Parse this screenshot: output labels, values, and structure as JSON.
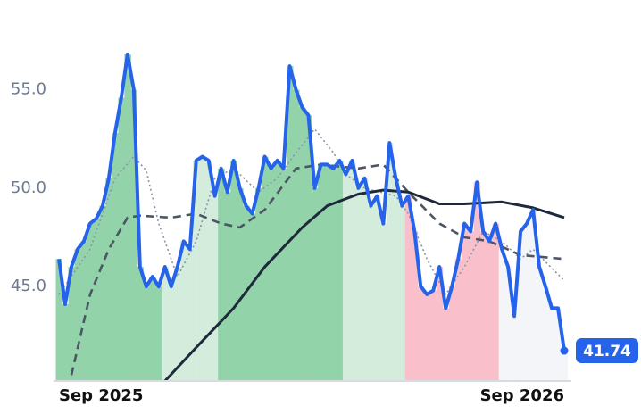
{
  "chart_data": {
    "type": "line",
    "categories": [
      "Sep 2025",
      null,
      null,
      null,
      null,
      null,
      null,
      null,
      null,
      null,
      null,
      null,
      null,
      null,
      null,
      null,
      null,
      null,
      null,
      null,
      null,
      null,
      null,
      null,
      null,
      null,
      null,
      null,
      null,
      null,
      null,
      null,
      null,
      null,
      null,
      null,
      null,
      null,
      null,
      null,
      null,
      null,
      null,
      null,
      null,
      null,
      null,
      null,
      null,
      null,
      null,
      null,
      null,
      null,
      null,
      null,
      null,
      null,
      null,
      null,
      null,
      null,
      null,
      null,
      null,
      null,
      null,
      null,
      null,
      null,
      null,
      null,
      null,
      null,
      null,
      null,
      null,
      null,
      null,
      null,
      null,
      "Sep 2026"
    ],
    "series": [
      {
        "color": "#2563eb",
        "values": [
          46.4,
          44.1,
          46,
          46.9,
          47.3,
          48.2,
          48.45,
          49.1,
          50.5,
          52.8,
          54.6,
          56.8,
          55,
          46,
          45,
          45.5,
          45,
          46,
          45,
          46,
          47.3,
          46.9,
          51.4,
          51.6,
          51.4,
          49.6,
          51,
          49.8,
          51.4,
          50,
          49.1,
          48.7,
          50,
          51.6,
          51,
          51.4,
          51,
          56.2,
          55,
          54.1,
          53.7,
          50,
          51.2,
          51.2,
          51,
          51.4,
          50.7,
          51.4,
          50,
          50.5,
          49.1,
          49.6,
          48.2,
          52.3,
          50.5,
          49.1,
          49.6,
          47.8,
          45,
          44.6,
          44.8,
          46,
          43.9,
          45,
          46.4,
          48.2,
          47.8,
          50.3,
          47.8,
          47.3,
          48.2,
          46.9,
          46,
          43.5,
          47.8,
          48.2,
          48.9,
          46,
          45,
          43.9,
          43.9,
          41.74
        ],
        "fill_colors": [
          "#93d3aa",
          "#93d3aa",
          "#93d3aa",
          "#93d3aa",
          "#93d3aa",
          "#93d3aa",
          "#93d3aa",
          "#93d3aa",
          "#93d3aa",
          "#93d3aa",
          "#93d3aa",
          "#93d3aa",
          "#93d3aa",
          "#93d3aa",
          "#93d3aa",
          "#93d3aa",
          "#93d3aa",
          "#d3ecdc",
          "#d3ecdc",
          "#d3ecdc",
          "#d3ecdc",
          "#d3ecdc",
          "#d3ecdc",
          "#d3ecdc",
          "#d3ecdc",
          "#d3ecdc",
          "#93d3aa",
          "#93d3aa",
          "#93d3aa",
          "#93d3aa",
          "#93d3aa",
          "#93d3aa",
          "#93d3aa",
          "#93d3aa",
          "#93d3aa",
          "#93d3aa",
          "#93d3aa",
          "#93d3aa",
          "#93d3aa",
          "#93d3aa",
          "#93d3aa",
          "#93d3aa",
          "#93d3aa",
          "#93d3aa",
          "#93d3aa",
          "#93d3aa",
          "#d3ecdc",
          "#d3ecdc",
          "#d3ecdc",
          "#d3ecdc",
          "#d3ecdc",
          "#d3ecdc",
          "#d3ecdc",
          "#d3ecdc",
          "#d3ecdc",
          "#d3ecdc",
          "#f9c0cb",
          "#f9c0cb",
          "#f9c0cb",
          "#f9c0cb",
          "#f9c0cb",
          "#f9c0cb",
          "#f9c0cb",
          "#f9c0cb",
          "#f9c0cb",
          "#f9c0cb",
          "#f9c0cb",
          "#f9c0cb",
          "#f9c0cb",
          "#f9c0cb",
          "#f9c0cb",
          "#f3f5f8",
          "#f3f5f8",
          "#f3f5f8",
          "#f3f5f8",
          "#f3f5f8",
          "#f3f5f8",
          "#f3f5f8",
          "#f3f5f8",
          "#f3f5f8",
          "#f3f5f8",
          "#f3f5f8"
        ]
      },
      {
        "color": "#8a93a6",
        "style": "dotted",
        "x": [
          0,
          5,
          9,
          12,
          14,
          16,
          19,
          22,
          25,
          28,
          32,
          35,
          38,
          41,
          44,
          46,
          49,
          54,
          56,
          59,
          62,
          65,
          68,
          71,
          74,
          76,
          81
        ],
        "values": [
          44.6,
          46.9,
          50.5,
          51.6,
          50.9,
          48.2,
          45.5,
          47.3,
          50.5,
          51,
          49.8,
          50.5,
          51.8,
          53,
          51.8,
          50.7,
          50,
          49.6,
          48.7,
          46.4,
          44.6,
          46,
          47.8,
          47.3,
          46.4,
          46.9,
          45.3
        ]
      },
      {
        "color": "#4b5563",
        "style": "dashed",
        "x": [
          2,
          5,
          8,
          11,
          13,
          18,
          22,
          26,
          29,
          33,
          38,
          42,
          48,
          52,
          56,
          61,
          65,
          69,
          74,
          81
        ],
        "values": [
          40.5,
          44.6,
          46.9,
          48.5,
          48.6,
          48.5,
          48.7,
          48.2,
          48,
          48.9,
          51,
          51.2,
          51,
          51.2,
          49.8,
          48.2,
          47.5,
          47.3,
          46.6,
          46.4
        ]
      },
      {
        "color": "#1e293b",
        "style": "solid",
        "x": [
          17,
          22,
          28,
          33,
          39,
          43,
          48,
          52,
          56,
          61,
          65,
          71,
          76,
          81
        ],
        "values": [
          40.2,
          41.9,
          43.9,
          46,
          48,
          49.1,
          49.7,
          49.9,
          49.8,
          49.2,
          49.2,
          49.3,
          49,
          48.5
        ]
      }
    ],
    "ylim": [
      40.2,
      58.2
    ],
    "yticks": [
      {
        "value": 45,
        "label": "45.0"
      },
      {
        "value": 50,
        "label": "50.0"
      },
      {
        "value": 55,
        "label": "55.0"
      }
    ]
  }
}
